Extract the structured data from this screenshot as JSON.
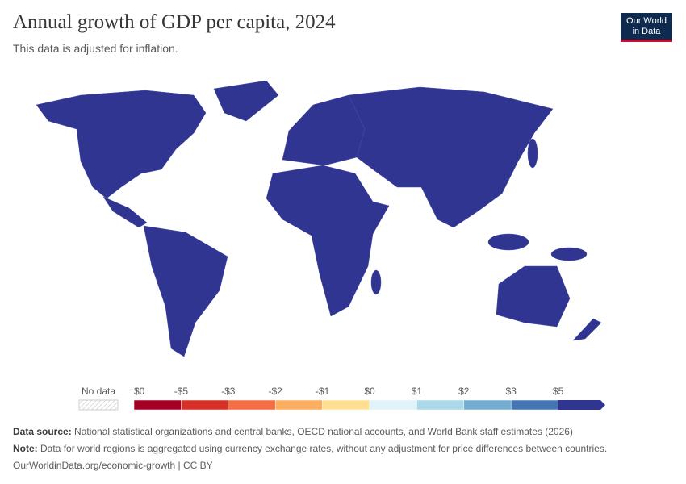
{
  "header": {
    "title": "Annual growth of GDP per capita, 2024",
    "subtitle": "This data is adjusted for inflation.",
    "logo": [
      "Our World",
      "in Data"
    ]
  },
  "legend": {
    "no_data": "No data",
    "labels": [
      "$0",
      "-$5",
      "-$3",
      "-$2",
      "-$1",
      "$0",
      "$1",
      "$2",
      "$3",
      "$5"
    ],
    "colors": [
      "#a50026",
      "#d73027",
      "#f46d43",
      "#fdae61",
      "#fee090",
      "#e0f3f8",
      "#abd9e9",
      "#74add1",
      "#4575b4",
      "#2f3591"
    ]
  },
  "footer": {
    "source_label": "Data source:",
    "source": "National statistical organizations and central banks, OECD national accounts, and World Bank staff estimates (2026)",
    "note_label": "Note:",
    "note": "Data for world regions is aggregated using currency exchange rates, without any adjustment for price differences between countries.",
    "url": "OurWorldinData.org/economic-growth | CC BY"
  }
}
